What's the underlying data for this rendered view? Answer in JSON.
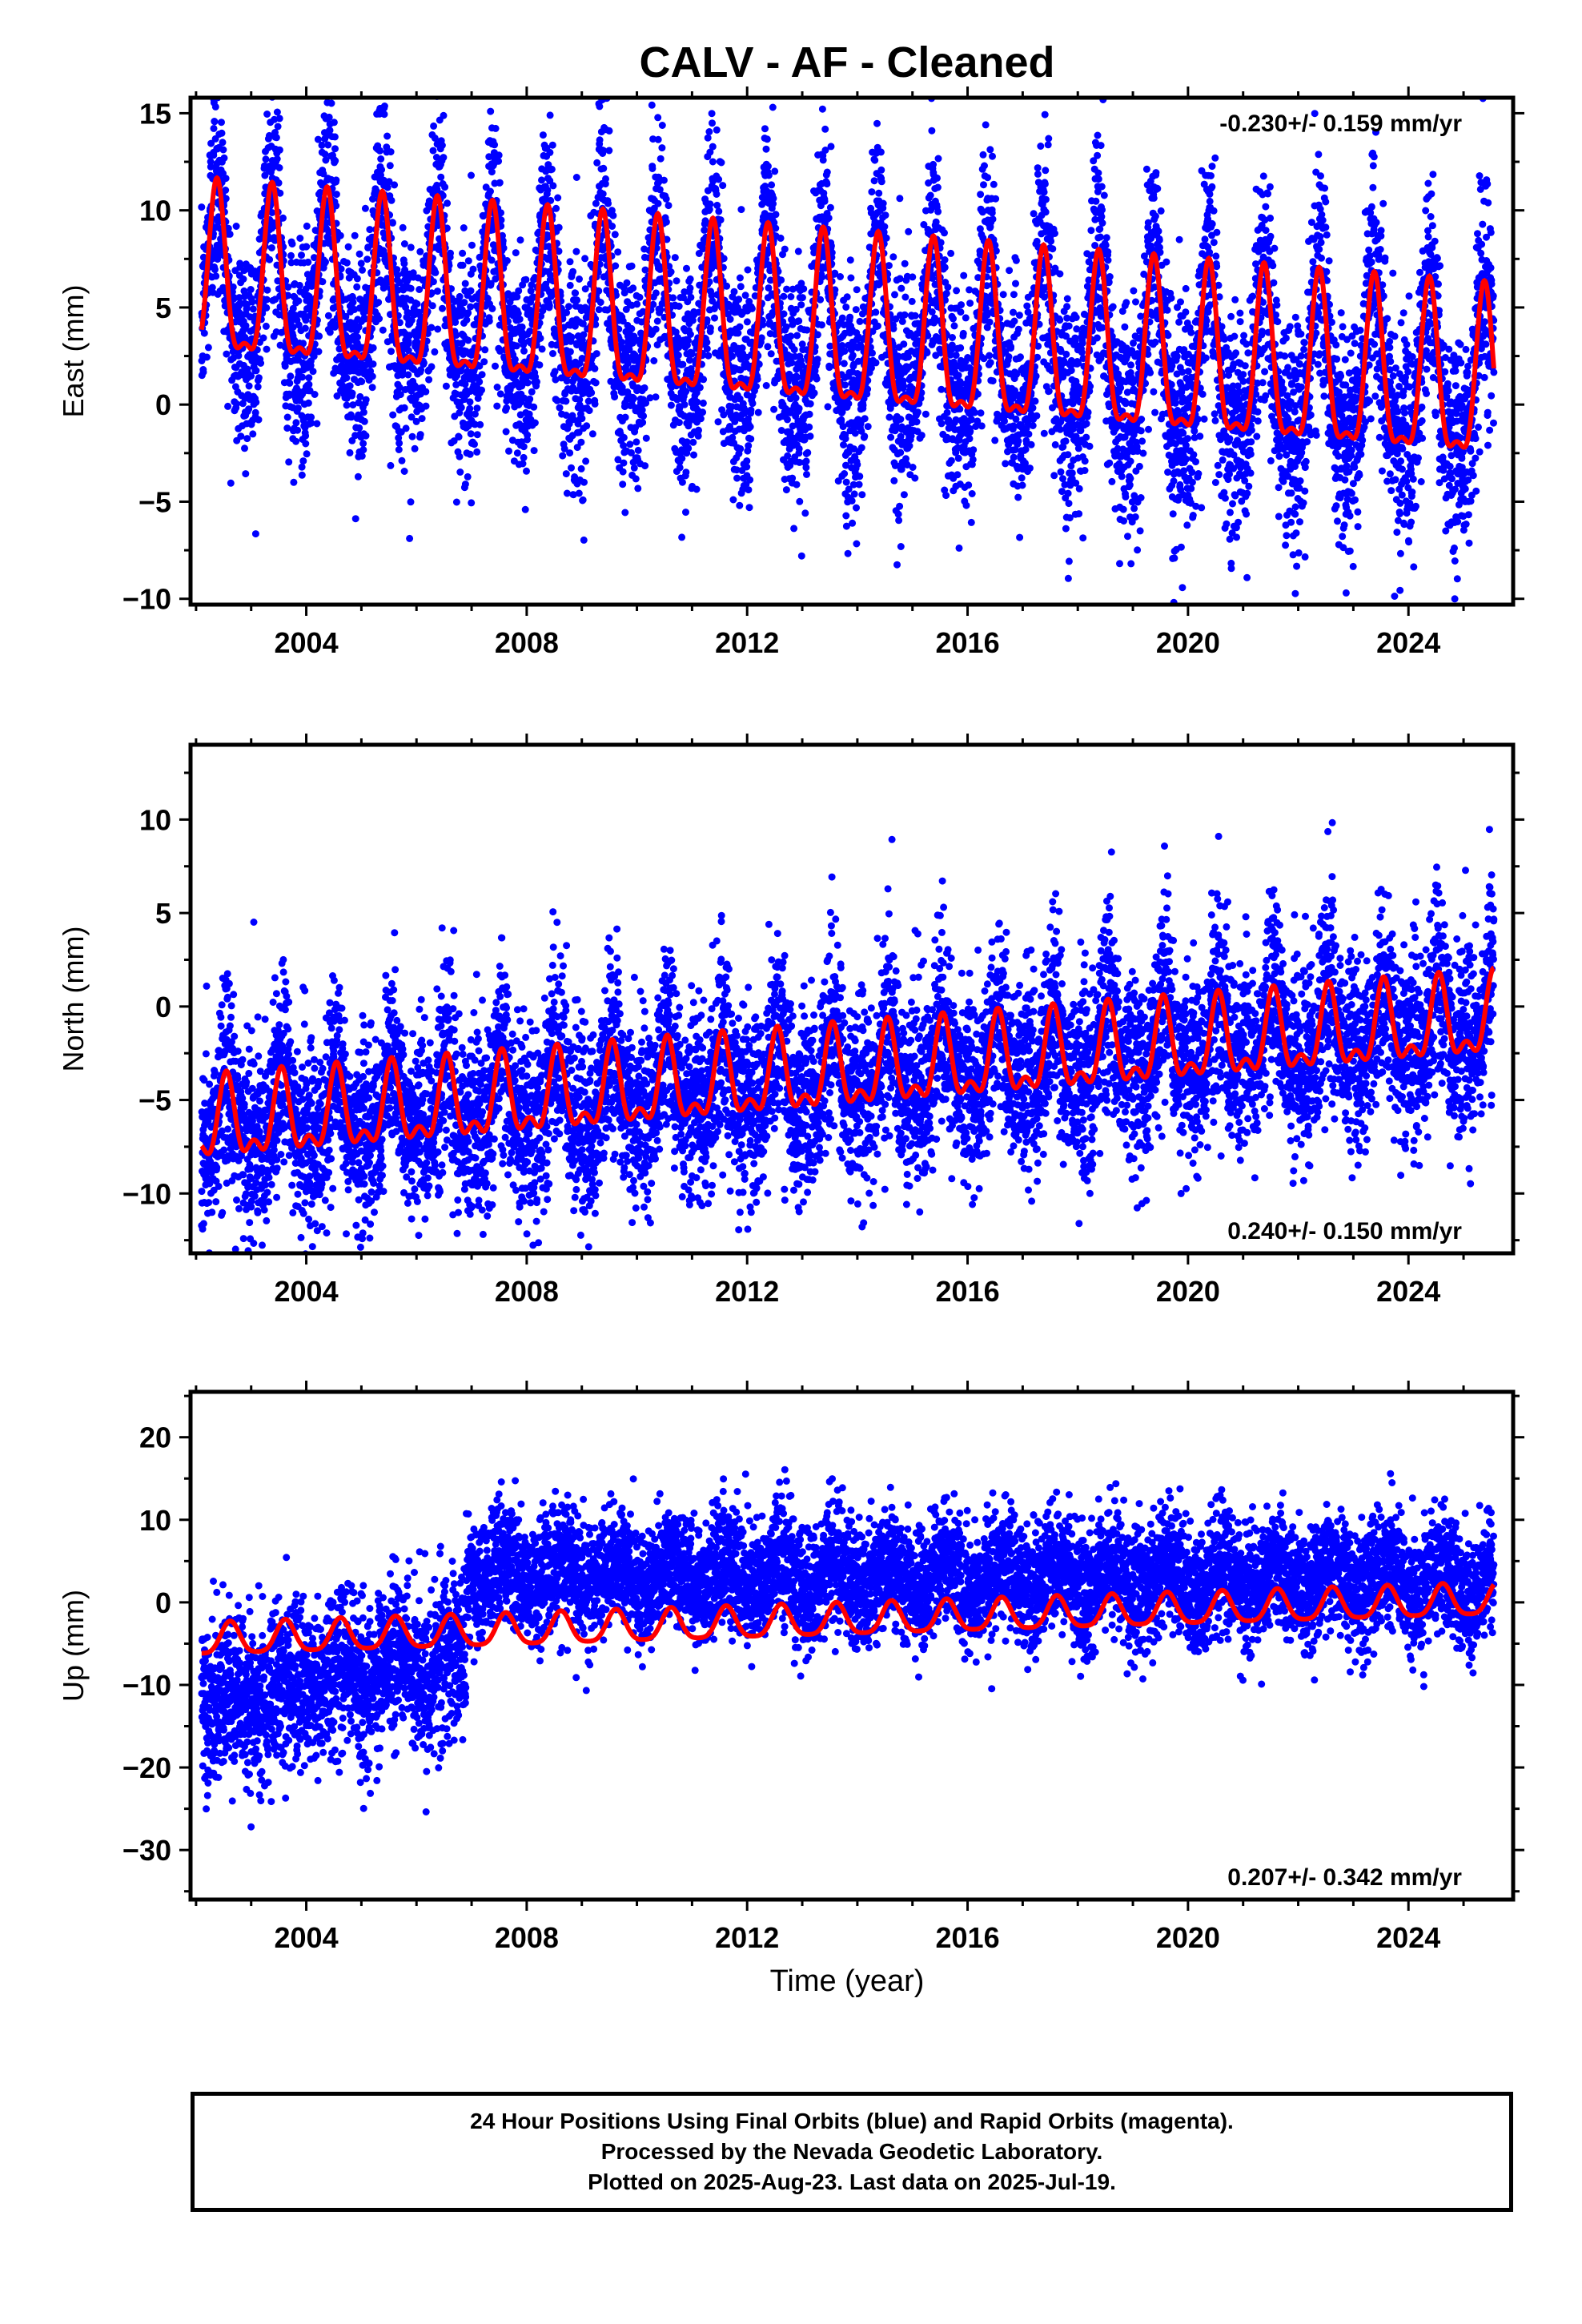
{
  "title": "CALV  - AF - Cleaned",
  "xlabel": "Time (year)",
  "footer": {
    "line1": "24 Hour Positions Using Final Orbits (blue) and Rapid Orbits (magenta).",
    "line2": "Processed by the Nevada Geodetic Laboratory.",
    "line3": "Plotted on 2025-Aug-23. Last data on 2025-Jul-19."
  },
  "colors": {
    "final_orbits": "#0000ff",
    "model_fit": "#ff0000",
    "axes": "#000000"
  },
  "chart_data": [
    {
      "type": "scatter",
      "name": "east",
      "ylabel": "East (mm)",
      "rate_annotation": "-0.230+/- 0.159 mm/yr",
      "rate_position": "top-right",
      "xlim": [
        2001.9,
        2025.9
      ],
      "ylim": [
        -10.3,
        15.8
      ],
      "x_ticks": [
        2004,
        2008,
        2012,
        2016,
        2020,
        2024
      ],
      "y_ticks": [
        -10,
        -5,
        0,
        5,
        10,
        15
      ],
      "data_start": 2002.1,
      "data_end": 2025.55,
      "trend_mm_per_yr": -0.23,
      "fit": {
        "offset_mm": 3.3,
        "annual_amp_mm": 4.2,
        "semiannual_amp_mm": 1.5,
        "peak_phase_yr": 0.38
      },
      "scatter_sd_mm": 2.6
    },
    {
      "type": "scatter",
      "name": "north",
      "ylabel": "North (mm)",
      "rate_annotation": "0.240+/- 0.150 mm/yr",
      "rate_position": "bottom-right",
      "xlim": [
        2001.9,
        2025.9
      ],
      "ylim": [
        -13.2,
        14.0
      ],
      "x_ticks": [
        2004,
        2008,
        2012,
        2016,
        2020,
        2024
      ],
      "y_ticks": [
        -10,
        -5,
        0,
        5,
        10
      ],
      "data_start": 2002.1,
      "data_end": 2025.55,
      "trend_mm_per_yr": 0.24,
      "fit": {
        "offset_mm": -3.6,
        "annual_amp_mm": 1.9,
        "semiannual_amp_mm": 1.0,
        "peak_phase_yr": 0.55
      },
      "scatter_sd_mm": 2.4
    },
    {
      "type": "scatter",
      "name": "up",
      "ylabel": "Up (mm)",
      "rate_annotation": "0.207+/- 0.342 mm/yr",
      "rate_position": "bottom-right",
      "xlim": [
        2001.9,
        2025.9
      ],
      "ylim": [
        -36.0,
        25.5
      ],
      "x_ticks": [
        2004,
        2008,
        2012,
        2016,
        2020,
        2024
      ],
      "y_ticks": [
        -30,
        -20,
        -10,
        0,
        10,
        20
      ],
      "data_start": 2002.1,
      "data_end": 2025.55,
      "trend_mm_per_yr": 0.207,
      "fit": {
        "offset_mm": -2.2,
        "annual_amp_mm": 1.9,
        "semiannual_amp_mm": 0.4,
        "peak_phase_yr": 0.62
      },
      "data_segments": [
        {
          "from": 2002.1,
          "to": 2006.9,
          "mean_start_mm": -12.0,
          "mean_end_mm": -7.0,
          "sd_mm": 5.0
        },
        {
          "from": 2006.9,
          "to": 2025.55,
          "mean_start_mm": 3.5,
          "mean_end_mm": 2.5,
          "sd_mm": 3.6
        }
      ]
    }
  ]
}
